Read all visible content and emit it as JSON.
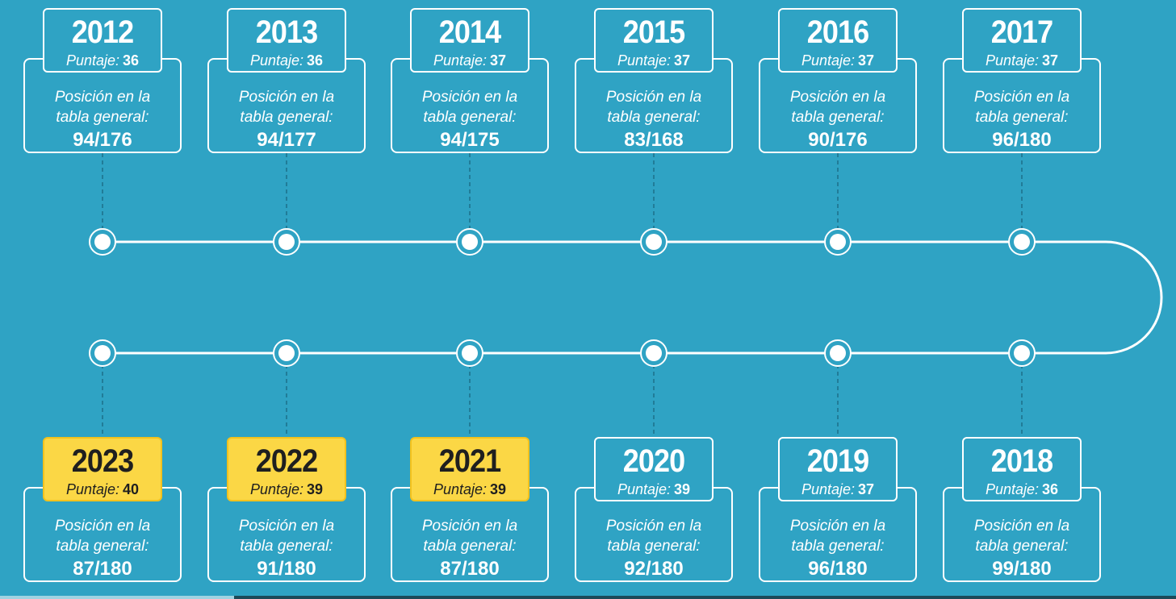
{
  "labels": {
    "score_label": "Puntaje:",
    "position_label_line1": "Posición en la",
    "position_label_line2": "tabla general:"
  },
  "colors": {
    "background": "#2fa3c4",
    "line": "#ffffff",
    "connector": "#1d6f8a",
    "highlight": "#fbd745"
  },
  "entries": [
    {
      "year": "2012",
      "score": "36",
      "position": "94/176",
      "highlight": false
    },
    {
      "year": "2013",
      "score": "36",
      "position": "94/177",
      "highlight": false
    },
    {
      "year": "2014",
      "score": "37",
      "position": "94/175",
      "highlight": false
    },
    {
      "year": "2015",
      "score": "37",
      "position": "83/168",
      "highlight": false
    },
    {
      "year": "2016",
      "score": "37",
      "position": "90/176",
      "highlight": false
    },
    {
      "year": "2017",
      "score": "37",
      "position": "96/180",
      "highlight": false
    },
    {
      "year": "2023",
      "score": "40",
      "position": "87/180",
      "highlight": true
    },
    {
      "year": "2022",
      "score": "39",
      "position": "91/180",
      "highlight": true
    },
    {
      "year": "2021",
      "score": "39",
      "position": "87/180",
      "highlight": true
    },
    {
      "year": "2020",
      "score": "39",
      "position": "92/180",
      "highlight": false
    },
    {
      "year": "2019",
      "score": "37",
      "position": "96/180",
      "highlight": false
    },
    {
      "year": "2018",
      "score": "36",
      "position": "99/180",
      "highlight": false
    }
  ]
}
